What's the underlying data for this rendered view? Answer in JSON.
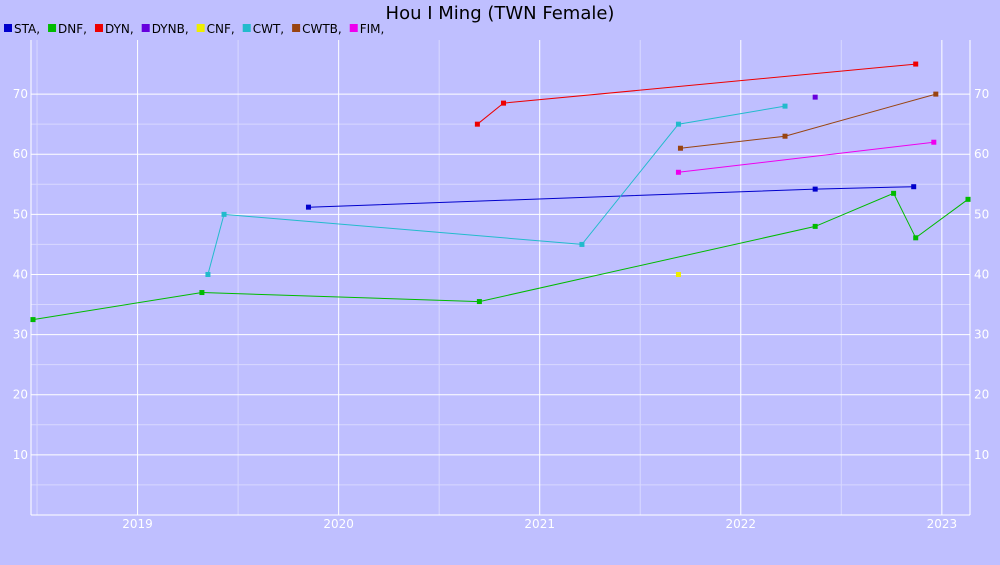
{
  "chart_data": {
    "type": "line",
    "title": "Hou I Ming (TWN Female)",
    "xlabel": "",
    "ylabel": "",
    "xlim": [
      2018.47,
      2023.14
    ],
    "ylim": [
      0,
      79
    ],
    "x_ticks": [
      2019,
      2020,
      2021,
      2022,
      2023
    ],
    "y_ticks": [
      10,
      20,
      30,
      40,
      50,
      60,
      70
    ],
    "grid": true,
    "legend_position": "top-left",
    "series": [
      {
        "name": "STA,",
        "color": "#0000cc",
        "points": [
          [
            2019.85,
            51.2
          ],
          [
            2022.37,
            54.2
          ],
          [
            2022.86,
            54.6
          ]
        ]
      },
      {
        "name": "DNF,",
        "color": "#00bb00",
        "points": [
          [
            2018.48,
            32.5
          ],
          [
            2019.32,
            37.0
          ],
          [
            2020.7,
            35.5
          ],
          [
            2022.37,
            48.0
          ],
          [
            2022.76,
            53.5
          ],
          [
            2022.87,
            46.1
          ],
          [
            2023.13,
            52.5
          ]
        ]
      },
      {
        "name": "DYN,",
        "color": "#ee0000",
        "points": [
          [
            2020.69,
            65.0
          ],
          [
            2020.82,
            68.5
          ],
          [
            2022.87,
            75.0
          ]
        ]
      },
      {
        "name": "DYNB,",
        "color": "#6600dd",
        "points": [
          [
            2022.37,
            69.5
          ]
        ]
      },
      {
        "name": "CNF,",
        "color": "#eeee00",
        "points": [
          [
            2021.69,
            40.0
          ]
        ]
      },
      {
        "name": "CWT,",
        "color": "#22bbcc",
        "points": [
          [
            2019.35,
            40.0
          ],
          [
            2019.43,
            50.0
          ],
          [
            2021.21,
            45.0
          ],
          [
            2021.69,
            65.0
          ],
          [
            2022.22,
            68.0
          ]
        ]
      },
      {
        "name": "CWTB,",
        "color": "#994411",
        "points": [
          [
            2021.7,
            61.0
          ],
          [
            2022.22,
            63.0
          ],
          [
            2022.97,
            70.0
          ]
        ]
      },
      {
        "name": "FIM,",
        "color": "#ee00ee",
        "points": [
          [
            2021.69,
            57.0
          ],
          [
            2022.96,
            62.0
          ]
        ]
      }
    ]
  }
}
